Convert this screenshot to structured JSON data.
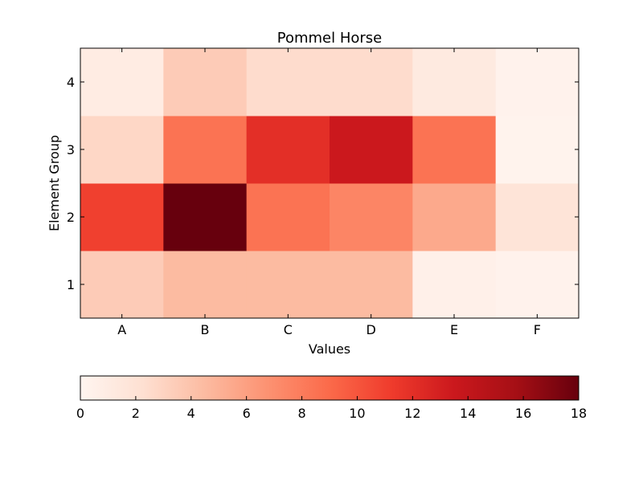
{
  "chart_data": {
    "type": "heatmap",
    "title": "Pommel Horse",
    "xlabel": "Values",
    "ylabel": "Element Group",
    "x_categories": [
      "A",
      "B",
      "C",
      "D",
      "E",
      "F"
    ],
    "y_categories": [
      "1",
      "2",
      "3",
      "4"
    ],
    "values": [
      [
        3.5,
        4.5,
        4.5,
        4.5,
        0.5,
        0.3
      ],
      [
        11.0,
        18.0,
        8.5,
        7.5,
        5.5,
        1.8
      ],
      [
        2.8,
        8.5,
        12.0,
        13.5,
        8.5,
        0.2
      ],
      [
        1.0,
        3.5,
        2.5,
        2.5,
        1.2,
        0.3
      ]
    ],
    "colormap": "Reds",
    "colorbar": {
      "orientation": "horizontal",
      "range": [
        0,
        18
      ],
      "ticks": [
        "0",
        "2",
        "4",
        "6",
        "8",
        "10",
        "12",
        "14",
        "16",
        "18"
      ]
    },
    "grid": false
  }
}
